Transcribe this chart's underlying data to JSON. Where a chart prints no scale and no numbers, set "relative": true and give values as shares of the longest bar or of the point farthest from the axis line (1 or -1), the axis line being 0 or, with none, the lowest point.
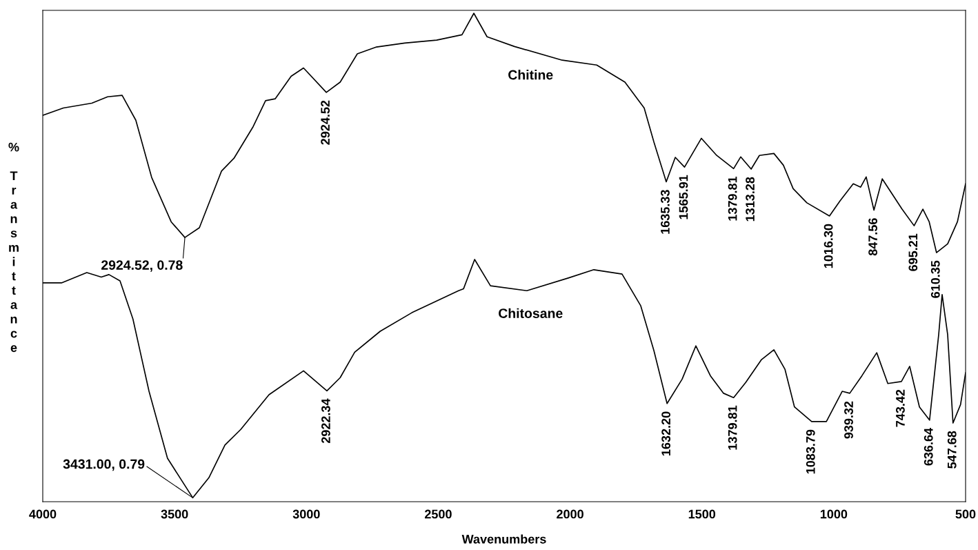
{
  "chart_data": {
    "type": "line",
    "relative": true,
    "xlabel": "Wavenumbers",
    "ylabel": "% Transmittance",
    "xlim": [
      4000,
      500
    ],
    "xticks": [
      4000,
      3500,
      3000,
      2500,
      2000,
      1500,
      1000,
      500
    ],
    "grid": false,
    "legend": false,
    "marker": "none",
    "line_style": "solid",
    "series": [
      {
        "name": "Chitine",
        "color": "#000000",
        "x": [
          4000,
          3922,
          3814,
          3754,
          3699,
          3647,
          3587,
          3513,
          3461,
          3406,
          3322,
          3275,
          3202,
          3155,
          3118,
          3058,
          3011,
          2924.52,
          2872,
          2807,
          2734,
          2627,
          2506,
          2410,
          2365,
          2315,
          2211,
          2030,
          1899,
          1792,
          1719,
          1682,
          1635.33,
          1601,
          1565.91,
          1502,
          1444,
          1379.81,
          1353,
          1313.28,
          1282,
          1227,
          1191,
          1154,
          1102,
          1016.3,
          976,
          926,
          898,
          877,
          847.56,
          816,
          741,
          695.21,
          662,
          638,
          610.35,
          568,
          531,
          500
        ],
        "values": [
          0.791,
          0.806,
          0.816,
          0.829,
          0.832,
          0.781,
          0.664,
          0.573,
          0.541,
          0.561,
          0.677,
          0.703,
          0.768,
          0.821,
          0.825,
          0.871,
          0.888,
          0.838,
          0.859,
          0.917,
          0.931,
          0.939,
          0.945,
          0.956,
          1.0,
          0.952,
          0.932,
          0.904,
          0.894,
          0.859,
          0.806,
          0.736,
          0.655,
          0.705,
          0.685,
          0.744,
          0.709,
          0.682,
          0.706,
          0.681,
          0.709,
          0.713,
          0.689,
          0.641,
          0.612,
          0.585,
          0.616,
          0.651,
          0.644,
          0.665,
          0.597,
          0.661,
          0.599,
          0.565,
          0.599,
          0.573,
          0.51,
          0.528,
          0.573,
          0.651
        ]
      },
      {
        "name": "Chitosane",
        "color": "#000000",
        "x": [
          4000,
          3929,
          3833,
          3778,
          3749,
          3707,
          3658,
          3597,
          3527,
          3431,
          3370,
          3309,
          3249,
          3142,
          3011,
          2922.34,
          2872,
          2817,
          2720,
          2600,
          2423,
          2404,
          2362,
          2302,
          2164,
          2007,
          1910,
          1803,
          1732,
          1682,
          1632.2,
          1575,
          1523,
          1468,
          1418,
          1379.81,
          1334,
          1274,
          1227,
          1185,
          1149,
          1083.79,
          1028,
          968,
          939.32,
          893,
          837,
          795,
          743.42,
          712,
          675,
          636.64,
          602,
          589,
          568,
          547.68,
          519,
          500
        ],
        "values": [
          0.448,
          0.448,
          0.469,
          0.46,
          0.465,
          0.452,
          0.374,
          0.226,
          0.089,
          0.008,
          0.049,
          0.116,
          0.148,
          0.219,
          0.268,
          0.227,
          0.254,
          0.306,
          0.349,
          0.387,
          0.432,
          0.436,
          0.496,
          0.442,
          0.432,
          0.458,
          0.475,
          0.466,
          0.401,
          0.309,
          0.201,
          0.251,
          0.319,
          0.258,
          0.222,
          0.213,
          0.244,
          0.291,
          0.311,
          0.271,
          0.194,
          0.164,
          0.164,
          0.226,
          0.222,
          0.258,
          0.305,
          0.242,
          0.246,
          0.277,
          0.194,
          0.167,
          0.342,
          0.424,
          0.342,
          0.161,
          0.199,
          0.264
        ]
      }
    ],
    "annotations": [
      {
        "text": "2924.52",
        "x": 2924.52,
        "y": 0.838
      },
      {
        "text": "1635.33",
        "x": 1635.33,
        "y": 0.655
      },
      {
        "text": "1565.91",
        "x": 1565.91,
        "y": 0.685
      },
      {
        "text": "1379.81",
        "x": 1379.81,
        "y": 0.682
      },
      {
        "text": "1313.28",
        "x": 1313.28,
        "y": 0.681
      },
      {
        "text": "1016.30",
        "x": 1016.3,
        "y": 0.585
      },
      {
        "text": "847.56",
        "x": 847.56,
        "y": 0.597
      },
      {
        "text": "695.21",
        "x": 695.21,
        "y": 0.565
      },
      {
        "text": "610.35",
        "x": 610.35,
        "y": 0.51
      },
      {
        "text": "2922.34",
        "x": 2922.34,
        "y": 0.227
      },
      {
        "text": "1632.20",
        "x": 1632.2,
        "y": 0.201
      },
      {
        "text": "1379.81",
        "x": 1379.81,
        "y": 0.213
      },
      {
        "text": "1083.79",
        "x": 1083.79,
        "y": 0.164
      },
      {
        "text": "939.32",
        "x": 939.32,
        "y": 0.222
      },
      {
        "text": "743.42",
        "x": 743.42,
        "y": 0.246
      },
      {
        "text": "636.64",
        "x": 636.64,
        "y": 0.167
      },
      {
        "text": "547.68",
        "x": 547.68,
        "y": 0.161
      },
      {
        "text": "2924.52, 0.78",
        "x": 3461,
        "y": 0.541
      },
      {
        "text": "3431.00, 0.79",
        "x": 3431,
        "y": 0.008
      }
    ]
  }
}
